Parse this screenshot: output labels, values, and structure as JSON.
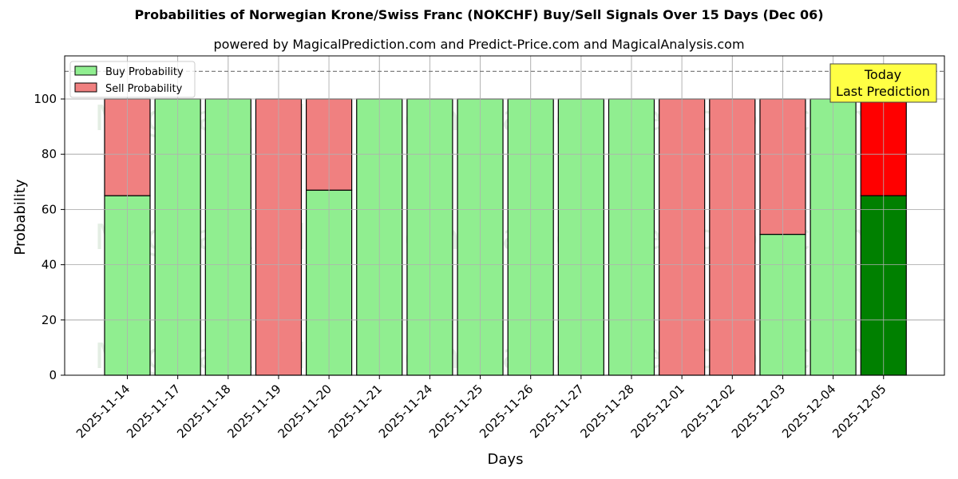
{
  "header": {
    "title": "Probabilities of Norwegian Krone/Swiss Franc (NOKCHF) Buy/Sell Signals Over 15 Days (Dec 06)",
    "subtitle": "powered by MagicalPrediction.com and Predict-Price.com and MagicalAnalysis.com"
  },
  "legend": {
    "buy_label": "Buy Probability",
    "sell_label": "Sell Probability"
  },
  "annotation": {
    "line1": "Today",
    "line2": "Last Prediction"
  },
  "watermarks": [
    "MagicalAnalysis.com",
    "MagicalPrediction.com"
  ],
  "colors": {
    "buy": "#90ee90",
    "sell": "#f08080",
    "today_buy": "#008000",
    "today_sell": "#ff0000",
    "annotation_bg": "#ffff44"
  },
  "chart_data": {
    "type": "bar",
    "stacked": true,
    "title": "Probabilities of Norwegian Krone/Swiss Franc (NOKCHF) Buy/Sell Signals Over 15 Days (Dec 06)",
    "subtitle": "powered by MagicalPrediction.com and Predict-Price.com and MagicalAnalysis.com",
    "xlabel": "Days",
    "ylabel": "Probability",
    "ylim": [
      0,
      115
    ],
    "yticks": [
      0,
      20,
      40,
      60,
      80,
      100
    ],
    "grid": true,
    "legend_position": "upper left",
    "reference_line": {
      "y": 110,
      "style": "dashed",
      "color": "#808080"
    },
    "categories": [
      "2025-11-14",
      "2025-11-17",
      "2025-11-18",
      "2025-11-19",
      "2025-11-20",
      "2025-11-21",
      "2025-11-24",
      "2025-11-25",
      "2025-11-26",
      "2025-11-27",
      "2025-11-28",
      "2025-12-01",
      "2025-12-02",
      "2025-12-03",
      "2025-12-04",
      "2025-12-05"
    ],
    "series": [
      {
        "name": "Buy Probability",
        "values": [
          65,
          100,
          100,
          0,
          67,
          100,
          100,
          100,
          100,
          100,
          100,
          0,
          0,
          51,
          100,
          65
        ]
      },
      {
        "name": "Sell Probability",
        "values": [
          35,
          0,
          0,
          100,
          33,
          0,
          0,
          0,
          0,
          0,
          0,
          100,
          100,
          49,
          0,
          35
        ]
      }
    ],
    "annotations": [
      {
        "text": "Today\nLast Prediction",
        "x": "2025-12-05"
      }
    ]
  }
}
